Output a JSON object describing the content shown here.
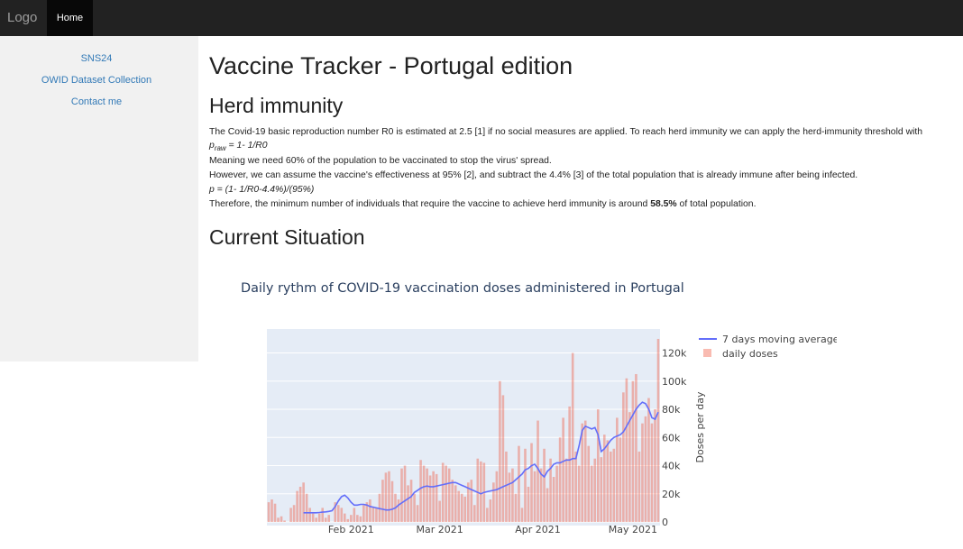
{
  "topbar": {
    "logo": "Logo",
    "home": "Home"
  },
  "sidebar": {
    "items": [
      {
        "label": "SNS24"
      },
      {
        "label": "OWID Dataset Collection"
      },
      {
        "label": "Contact me"
      }
    ]
  },
  "main": {
    "title": "Vaccine Tracker - Portugal edition",
    "herd_heading": "Herd immunity",
    "p1": "The Covid-19 basic reproduction number R0 is estimated at 2.5 [1] if no social measures are applied. To reach herd immunity we can apply the herd-immunity threshold with",
    "formula1_p": "p",
    "formula1_sub": "raw",
    "formula1_rest": " = 1- 1/R0",
    "p2": "Meaning we need 60% of the population to be vaccinated to stop the virus' spread.",
    "p3": "However, we can assume the vaccine's effectiveness at 95% [2], and subtract the 4.4% [3] of the total population that is already immune after being infected.",
    "formula2": "p = (1- 1/R0-4.4%)/(95%)",
    "p4_before": "Therefore, the minimum number of individuals that require the vaccine to achieve herd immunity is around ",
    "p4_bold": "58.5%",
    "p4_after": " of total population.",
    "current_heading": "Current Situation"
  },
  "chart_data": {
    "type": "bar",
    "title": "Daily rythm of COVID-19 vaccination doses administered in Portugal",
    "ylabel": "Doses per day",
    "ylim": [
      0,
      137000
    ],
    "yticks": [
      0,
      20000,
      40000,
      60000,
      80000,
      100000,
      120000
    ],
    "ytick_labels": [
      "0",
      "20k",
      "40k",
      "60k",
      "80k",
      "100k",
      "120k"
    ],
    "xticks": [
      "2021-02-01",
      "2021-03-01",
      "2021-04-01",
      "2021-05-01"
    ],
    "xtick_labels": [
      "Feb 2021",
      "Mar 2021",
      "Apr 2021",
      "May 2021"
    ],
    "x_start": "2021-01-06",
    "legend": [
      "7 days moving average",
      "daily doses"
    ],
    "legend_position": "top-right",
    "colors": {
      "line": "#636efa",
      "bar": "#ef553b",
      "plot_bg": "#e5ecf6",
      "axis_text": "#444444"
    },
    "series": [
      {
        "name": "daily doses",
        "values": [
          14000,
          16000,
          13000,
          3000,
          4000,
          1000,
          0,
          10000,
          12000,
          22000,
          25000,
          28000,
          20000,
          10000,
          6000,
          3000,
          6000,
          10000,
          3000,
          5000,
          0,
          14000,
          12000,
          10000,
          6000,
          2000,
          5000,
          10000,
          5000,
          4000,
          12000,
          14000,
          16000,
          11000,
          10000,
          20000,
          30000,
          35000,
          36000,
          29000,
          20000,
          16000,
          38000,
          40000,
          26000,
          30000,
          20000,
          12000,
          44000,
          40000,
          38000,
          33000,
          36000,
          34000,
          15000,
          42000,
          40000,
          38000,
          30000,
          26000,
          22000,
          20000,
          18000,
          28000,
          30000,
          12000,
          45000,
          43000,
          42000,
          10000,
          16000,
          28000,
          36000,
          100000,
          90000,
          50000,
          35000,
          38000,
          20000,
          54000,
          10000,
          52000,
          25000,
          56000,
          36000,
          72000,
          38000,
          52000,
          24000,
          45000,
          32000,
          40000,
          60000,
          74000,
          45000,
          82000,
          120000,
          50000,
          40000,
          70000,
          72000,
          54000,
          40000,
          45000,
          80000,
          46000,
          62000,
          58000,
          50000,
          52000,
          74000,
          60000,
          92000,
          102000,
          78000,
          100000,
          105000,
          50000,
          70000,
          75000,
          88000,
          70000,
          80000,
          130000
        ]
      },
      {
        "name": "7 days moving average",
        "values": [
          6500,
          6500,
          6500,
          6500,
          6500,
          6700,
          7000,
          7200,
          7500,
          8000,
          11000,
          15000,
          18000,
          19000,
          17000,
          14000,
          12000,
          12000,
          12500,
          12500,
          12000,
          11000,
          10500,
          10000,
          9500,
          9000,
          8500,
          8500,
          9000,
          10000,
          12000,
          13500,
          15000,
          16500,
          18000,
          21000,
          22500,
          24000,
          25000,
          25500,
          25000,
          25000,
          25500,
          26000,
          26500,
          27000,
          27500,
          28000,
          28000,
          27000,
          26000,
          25000,
          24000,
          23000,
          22000,
          21000,
          20000,
          21000,
          21500,
          22000,
          22500,
          23000,
          24000,
          25000,
          26000,
          27000,
          28000,
          30000,
          32000,
          34000,
          37000,
          38000,
          40000,
          41000,
          38000,
          34000,
          32000,
          36000,
          38000,
          41000,
          42000,
          42000,
          43000,
          44000,
          44000,
          45000,
          45000,
          54000,
          65000,
          68000,
          67000,
          66000,
          67000,
          62000,
          50000,
          52000,
          55000,
          58000,
          60000,
          61000,
          62000,
          64000,
          68000,
          72000,
          76000,
          80000,
          83000,
          85000,
          84000,
          80000,
          74000,
          73000,
          78000
        ]
      }
    ]
  }
}
